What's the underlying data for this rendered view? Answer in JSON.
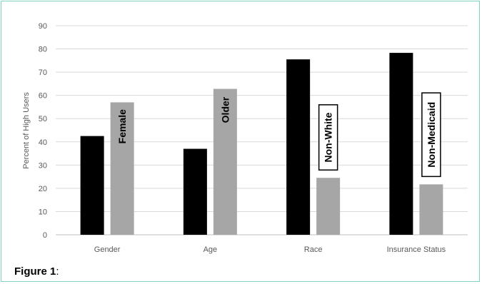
{
  "caption": {
    "label": "Figure 1",
    "suffix": ":"
  },
  "chart_data": {
    "type": "bar",
    "ylabel": "Percent of High Users",
    "xlabel": "",
    "ylim": [
      0,
      90
    ],
    "yticks": [
      0,
      10,
      20,
      30,
      40,
      50,
      60,
      70,
      80,
      90
    ],
    "grid": true,
    "categories": [
      "Gender",
      "Age",
      "Race",
      "Insurance Status"
    ],
    "series": [
      {
        "values": [
          42.5,
          37,
          75.5,
          78.3
        ],
        "color": "#000000"
      },
      {
        "values": [
          57,
          62.8,
          24.5,
          21.7
        ],
        "color": "#a6a6a6"
      }
    ],
    "annotations": [
      {
        "text": "Female",
        "category": "Gender",
        "boxed": false
      },
      {
        "text": "Older",
        "category": "Age",
        "boxed": false
      },
      {
        "text": "Non-White",
        "category": "Race",
        "boxed": true
      },
      {
        "text": "Non-Medicaid",
        "category": "Insurance Status",
        "boxed": true
      }
    ]
  }
}
